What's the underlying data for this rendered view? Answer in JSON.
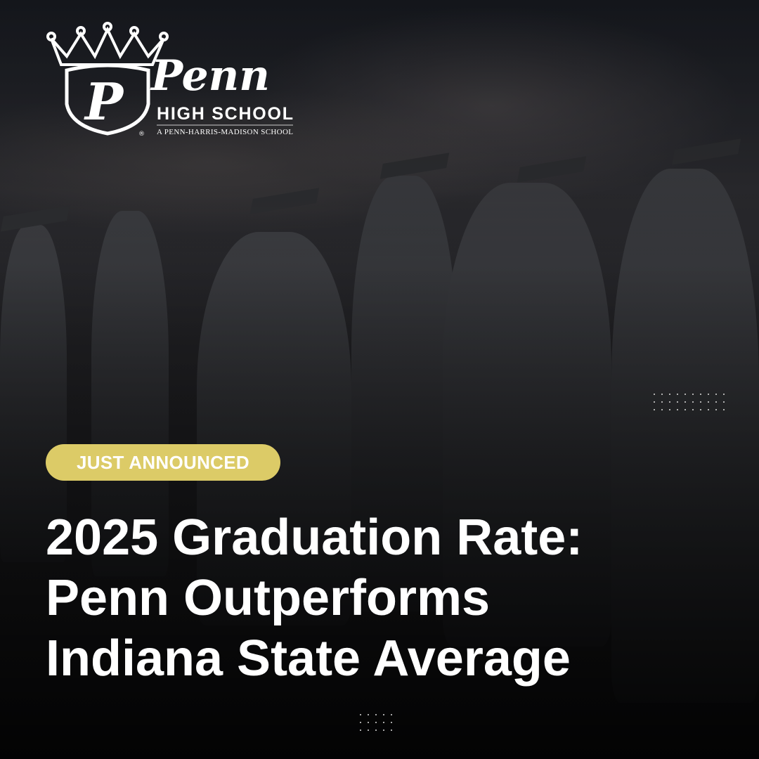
{
  "logo": {
    "name": "Penn",
    "subtitle": "HIGH SCHOOL",
    "tagline": "A PENN-HARRIS-MADISON SCHOOL",
    "registered": "®"
  },
  "badge": {
    "label": "JUST ANNOUNCED",
    "color": "#dccb67"
  },
  "headline": {
    "lines": [
      "2025 Graduation Rate:",
      "Penn Outperforms",
      "Indiana State Average"
    ]
  },
  "colors": {
    "text": "#ffffff",
    "background": "#151517"
  }
}
